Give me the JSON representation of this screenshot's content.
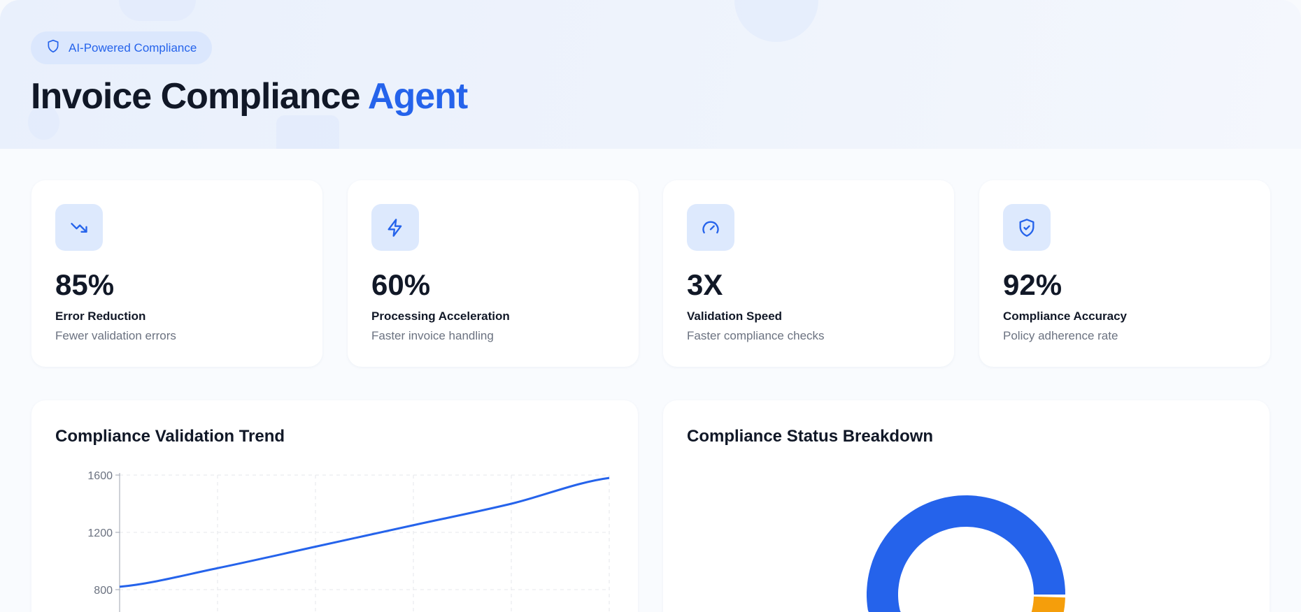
{
  "header": {
    "badge": "AI-Powered Compliance",
    "badge_icon": "shield-icon",
    "title_main": "Invoice Compliance",
    "title_accent": "Agent",
    "accent_color": "#2563eb"
  },
  "kpis": [
    {
      "icon": "trending-down-icon",
      "value": "85%",
      "label": "Error Reduction",
      "sub": "Fewer validation errors"
    },
    {
      "icon": "zap-icon",
      "value": "60%",
      "label": "Processing Acceleration",
      "sub": "Faster invoice handling"
    },
    {
      "icon": "gauge-icon",
      "value": "3X",
      "label": "Validation Speed",
      "sub": "Faster compliance checks"
    },
    {
      "icon": "shield-check-icon",
      "value": "92%",
      "label": "Compliance Accuracy",
      "sub": "Policy adherence rate"
    }
  ],
  "trend": {
    "title": "Compliance Validation Trend"
  },
  "breakdown": {
    "title": "Compliance Status Breakdown"
  },
  "chart_data": [
    {
      "type": "line",
      "title": "Compliance Validation Trend",
      "y_ticks": [
        800,
        1200,
        1600
      ],
      "ylim": [
        800,
        1600
      ],
      "grid": true,
      "values": [
        820,
        950,
        1100,
        1250,
        1400,
        1580
      ],
      "color": "#2563eb"
    },
    {
      "type": "pie",
      "title": "Compliance Status Breakdown",
      "donut": true,
      "values": [
        88,
        12
      ],
      "colors": [
        "#2563eb",
        "#f59e0b"
      ]
    }
  ]
}
